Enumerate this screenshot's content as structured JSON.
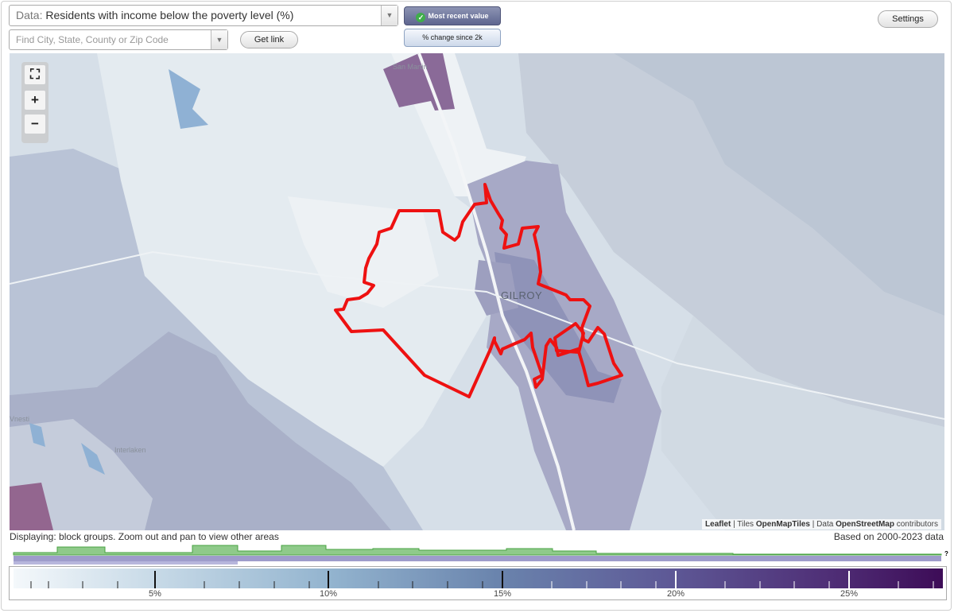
{
  "data_selector": {
    "prefix": "Data:",
    "value": "Residents with income below the poverty level (%)"
  },
  "search": {
    "placeholder": "Find City, State, County or Zip Code"
  },
  "buttons": {
    "get_link": "Get link",
    "settings": "Settings"
  },
  "toggles": {
    "most_recent": "Most recent value",
    "change": "% change since 2k"
  },
  "map": {
    "city_label": "GILROY",
    "places": [
      "San Martin",
      "Interlaken",
      "Vnesti"
    ],
    "attribution": {
      "leaflet": "Leaflet",
      "sep": "|",
      "tiles_label": "Tiles",
      "tiles": "OpenMapTiles",
      "data_label": "Data",
      "osm": "OpenStreetMap",
      "contributors": "contributors"
    }
  },
  "status_text": "Displaying: block groups. Zoom out and pan to view other areas",
  "data_years": "Based on 2000-2023 data",
  "legend": {
    "tick_labels": [
      "5%",
      "10%",
      "15%",
      "20%",
      "25%"
    ],
    "colors": {
      "low": "#f4f8fb",
      "high": "#3d0c57"
    }
  },
  "colors": {
    "boundary": "#ee1111",
    "histogram_green": "#8fca8a",
    "histogram_purple": "#9e9ccb"
  },
  "question_mark": "?"
}
